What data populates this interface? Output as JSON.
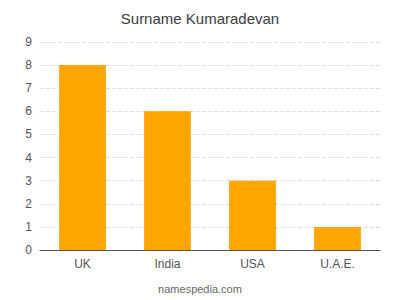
{
  "chart_data": {
    "type": "bar",
    "title": "Surname Kumaradevan",
    "categories": [
      "UK",
      "India",
      "USA",
      "U.A.E."
    ],
    "values": [
      8,
      6,
      3,
      1
    ],
    "color": "#FFA500",
    "ylim": [
      0,
      9
    ],
    "yticks": [
      0,
      1,
      2,
      3,
      4,
      5,
      6,
      7,
      8,
      9
    ],
    "grid": true,
    "annotation": "namespedia.com"
  }
}
